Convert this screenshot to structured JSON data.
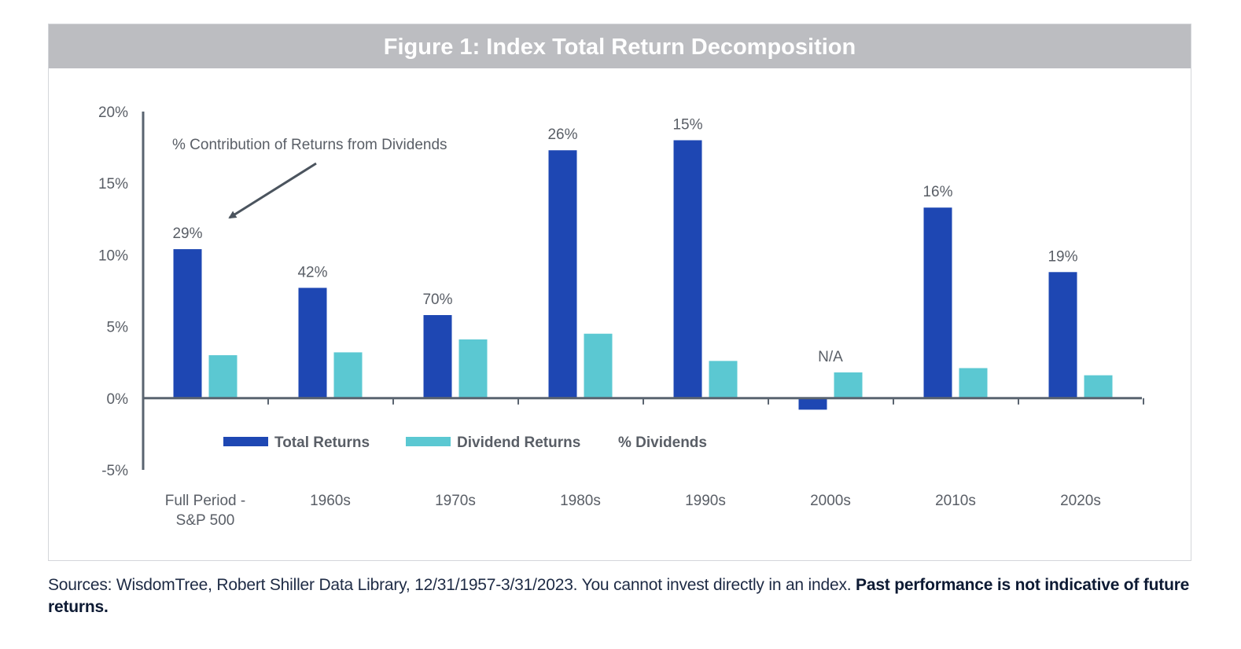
{
  "figure": {
    "title": "Figure 1: Index Total Return Decomposition"
  },
  "footnote": {
    "sources": "Sources: WisdomTree, Robert Shiller Data Library, 12/31/1957-3/31/2023. You cannot invest directly in an index.",
    "disclaimer": "Past performance is not indicative of future returns."
  },
  "colors": {
    "total_returns": "#1e47b3",
    "dividend_returns": "#5bc8d2",
    "axis": "#5a6470",
    "label_text": "#595e66",
    "header_bg": "#bcbdc1"
  },
  "chart_data": {
    "type": "bar",
    "title": "Figure 1: Index Total Return Decomposition",
    "categories": [
      [
        "Full Period -",
        "S&P 500"
      ],
      [
        "1960s"
      ],
      [
        "1970s"
      ],
      [
        "1980s"
      ],
      [
        "1990s"
      ],
      [
        "2000s"
      ],
      [
        "2010s"
      ],
      [
        "2020s"
      ]
    ],
    "series": [
      {
        "name": "Total Returns",
        "values": [
          10.4,
          7.7,
          5.8,
          17.3,
          18.0,
          -0.8,
          13.3,
          8.8
        ]
      },
      {
        "name": "Dividend Returns",
        "values": [
          3.0,
          3.2,
          4.1,
          4.5,
          2.6,
          1.8,
          2.1,
          1.6
        ]
      }
    ],
    "pct_dividends": {
      "name": "% Dividends",
      "labels": [
        "29%",
        "42%",
        "70%",
        "26%",
        "15%",
        "N/A",
        "16%",
        "19%"
      ]
    },
    "yticks": [
      "20%",
      "15%",
      "10%",
      "5%",
      "0%",
      "-5%"
    ],
    "ytick_values": [
      20,
      15,
      10,
      5,
      0,
      -5
    ],
    "ylim": [
      -5,
      20
    ],
    "annotation": "% Contribution of Returns from Dividends",
    "legend_position": "bottom-inside",
    "grid": false
  }
}
